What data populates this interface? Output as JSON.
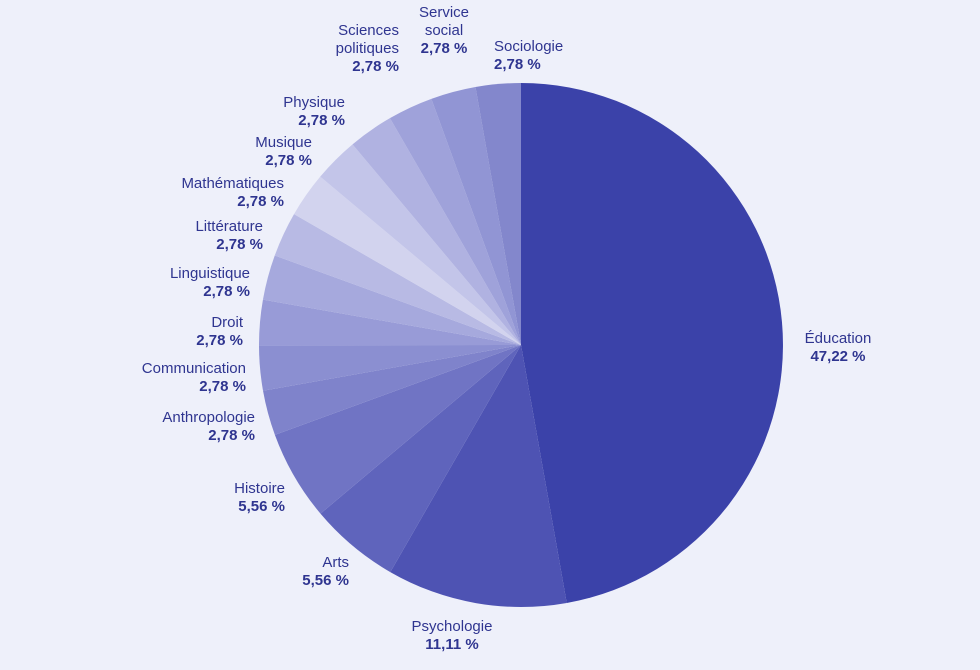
{
  "chart_data": {
    "type": "pie",
    "slices": [
      {
        "label": "Éducation",
        "value": 47.22,
        "value_text": "47,22 %",
        "color": "#3b42a9"
      },
      {
        "label": "Psychologie",
        "value": 11.11,
        "value_text": "11,11 %",
        "color": "#4e53b3"
      },
      {
        "label": "Arts",
        "value": 5.56,
        "value_text": "5,56 %",
        "color": "#5f64bc"
      },
      {
        "label": "Histoire",
        "value": 5.56,
        "value_text": "5,56 %",
        "color": "#7074c4"
      },
      {
        "label": "Anthropologie",
        "value": 2.78,
        "value_text": "2,78 %",
        "color": "#7f83cb"
      },
      {
        "label": "Communication",
        "value": 2.78,
        "value_text": "2,78 %",
        "color": "#8b8fd1"
      },
      {
        "label": "Droit",
        "value": 2.78,
        "value_text": "2,78 %",
        "color": "#989bd7"
      },
      {
        "label": "Linguistique",
        "value": 2.78,
        "value_text": "2,78 %",
        "color": "#a6a9dd"
      },
      {
        "label": "Littérature",
        "value": 2.78,
        "value_text": "2,78 %",
        "color": "#b8bae4"
      },
      {
        "label": "Mathématiques",
        "value": 2.78,
        "value_text": "2,78 %",
        "color": "#d2d3ee"
      },
      {
        "label": "Musique",
        "value": 2.78,
        "value_text": "2,78 %",
        "color": "#c3c5e9"
      },
      {
        "label": "Physique",
        "value": 2.78,
        "value_text": "2,78 %",
        "color": "#b0b2e1"
      },
      {
        "label": "Sciences politiques",
        "value": 2.78,
        "value_text": "2,78 %",
        "color": "#9fa2da"
      },
      {
        "label": "Service social",
        "value": 2.78,
        "value_text": "2,78 %",
        "color": "#9195d4"
      },
      {
        "label": "Sociologie",
        "value": 2.78,
        "value_text": "2,78 %",
        "color": "#8387cc"
      }
    ]
  }
}
